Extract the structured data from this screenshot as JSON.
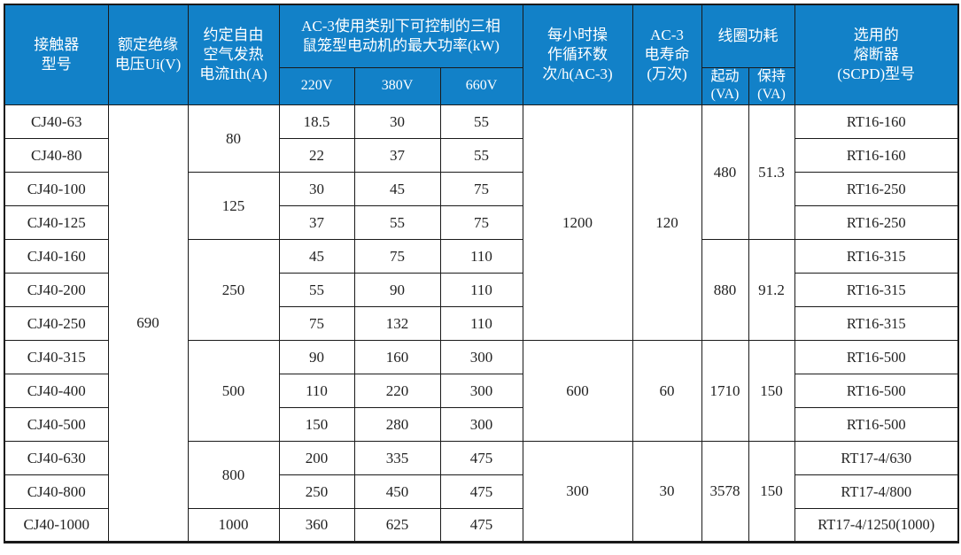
{
  "colors": {
    "header_bg": "#1281c8",
    "header_text": "#ffffff",
    "border": "#1a1a1a",
    "body_text": "#222222",
    "page_bg": "#ffffff"
  },
  "table": {
    "header": {
      "model": "接触器\n型号",
      "ui_voltage": "额定绝缘\n电压Ui(V)",
      "ith": "约定自由\n空气发热\n电流Ith(A)",
      "kw_group": "AC-3使用类别下可控制的三相\n鼠笼型电动机的最大功率(kW)",
      "kw_220": "220V",
      "kw_380": "380V",
      "kw_660": "660V",
      "cycles_per_hour": "每小时操\n作循环数\n次/h(AC-3)",
      "electrical_life": "AC-3\n电寿命\n(万次)",
      "coil_group": "线圈功耗",
      "coil_start": "起动\n(VA)",
      "coil_hold": "保持\n(VA)",
      "fuse": "选用的\n熔断器\n(SCPD)型号"
    },
    "rows": [
      {
        "model": "CJ40-63",
        "kw_220": "18.5",
        "kw_380": "30",
        "kw_660": "55",
        "fuse": "RT16-160"
      },
      {
        "model": "CJ40-80",
        "kw_220": "22",
        "kw_380": "37",
        "kw_660": "55",
        "fuse": "RT16-160"
      },
      {
        "model": "CJ40-100",
        "kw_220": "30",
        "kw_380": "45",
        "kw_660": "75",
        "fuse": "RT16-250"
      },
      {
        "model": "CJ40-125",
        "kw_220": "37",
        "kw_380": "55",
        "kw_660": "75",
        "fuse": "RT16-250"
      },
      {
        "model": "CJ40-160",
        "kw_220": "45",
        "kw_380": "75",
        "kw_660": "110",
        "fuse": "RT16-315"
      },
      {
        "model": "CJ40-200",
        "kw_220": "55",
        "kw_380": "90",
        "kw_660": "110",
        "fuse": "RT16-315"
      },
      {
        "model": "CJ40-250",
        "kw_220": "75",
        "kw_380": "132",
        "kw_660": "110",
        "fuse": "RT16-315"
      },
      {
        "model": "CJ40-315",
        "kw_220": "90",
        "kw_380": "160",
        "kw_660": "300",
        "fuse": "RT16-500"
      },
      {
        "model": "CJ40-400",
        "kw_220": "110",
        "kw_380": "220",
        "kw_660": "300",
        "fuse": "RT16-500"
      },
      {
        "model": "CJ40-500",
        "kw_220": "150",
        "kw_380": "280",
        "kw_660": "300",
        "fuse": "RT16-500"
      },
      {
        "model": "CJ40-630",
        "kw_220": "200",
        "kw_380": "335",
        "kw_660": "475",
        "fuse": "RT17-4/630"
      },
      {
        "model": "CJ40-800",
        "kw_220": "250",
        "kw_380": "450",
        "kw_660": "475",
        "fuse": "RT17-4/800"
      },
      {
        "model": "CJ40-1000",
        "kw_220": "360",
        "kw_380": "625",
        "kw_660": "475",
        "fuse": "RT17-4/1250(1000)"
      }
    ],
    "merged": {
      "ui_voltage": [
        {
          "value": "690",
          "start": 0,
          "span": 13
        }
      ],
      "ith": [
        {
          "value": "80",
          "start": 0,
          "span": 2
        },
        {
          "value": "125",
          "start": 2,
          "span": 2
        },
        {
          "value": "250",
          "start": 4,
          "span": 3
        },
        {
          "value": "500",
          "start": 7,
          "span": 3
        },
        {
          "value": "800",
          "start": 10,
          "span": 2
        },
        {
          "value": "1000",
          "start": 12,
          "span": 1
        }
      ],
      "cycles_per_hour": [
        {
          "value": "1200",
          "start": 0,
          "span": 7
        },
        {
          "value": "600",
          "start": 7,
          "span": 3
        },
        {
          "value": "300",
          "start": 10,
          "span": 3
        }
      ],
      "electrical_life": [
        {
          "value": "120",
          "start": 0,
          "span": 7
        },
        {
          "value": "60",
          "start": 7,
          "span": 3
        },
        {
          "value": "30",
          "start": 10,
          "span": 3
        }
      ],
      "coil_start_va": [
        {
          "value": "480",
          "start": 0,
          "span": 4
        },
        {
          "value": "880",
          "start": 4,
          "span": 3
        },
        {
          "value": "1710",
          "start": 7,
          "span": 3
        },
        {
          "value": "3578",
          "start": 10,
          "span": 3
        }
      ],
      "coil_hold_va": [
        {
          "value": "51.3",
          "start": 0,
          "span": 4
        },
        {
          "value": "91.2",
          "start": 4,
          "span": 3
        },
        {
          "value": "150",
          "start": 7,
          "span": 3
        },
        {
          "value": "150",
          "start": 10,
          "span": 3
        }
      ]
    }
  }
}
